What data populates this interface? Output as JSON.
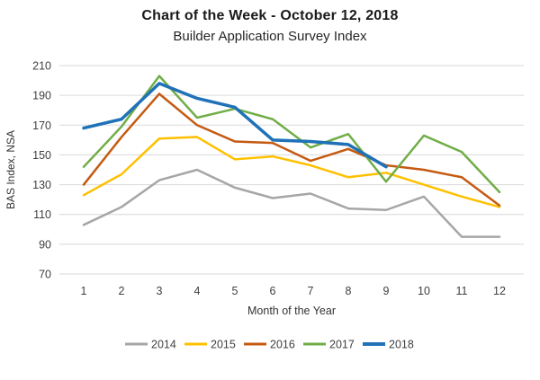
{
  "title": "Chart of the Week - October 12, 2018",
  "subtitle": "Builder Application Survey Index",
  "chart_data": {
    "type": "line",
    "x": [
      1,
      2,
      3,
      4,
      5,
      6,
      7,
      8,
      9,
      10,
      11,
      12
    ],
    "xlabel": "Month of the Year",
    "ylabel": "BAS Index, NSA",
    "ylim": [
      70,
      210
    ],
    "ytick_step": 20,
    "grid": "horizontal",
    "gridline_color": "#d9d9d9",
    "tick_label_color": "#404040",
    "legend_position": "bottom",
    "series": [
      {
        "name": "2014",
        "color": "#a6a6a6",
        "values": [
          103,
          115,
          133,
          140,
          128,
          121,
          124,
          114,
          113,
          122,
          95,
          95
        ]
      },
      {
        "name": "2015",
        "color": "#ffc000",
        "values": [
          123,
          137,
          161,
          162,
          147,
          149,
          143,
          135,
          138,
          130,
          122,
          115
        ]
      },
      {
        "name": "2016",
        "color": "#c55a11",
        "values": [
          130,
          162,
          191,
          170,
          159,
          158,
          146,
          154,
          143,
          140,
          135,
          116
        ]
      },
      {
        "name": "2017",
        "color": "#70ad47",
        "values": [
          142,
          169,
          203,
          175,
          181,
          174,
          155,
          164,
          132,
          163,
          152,
          125
        ]
      },
      {
        "name": "2018",
        "color": "#1f71b8",
        "values": [
          168,
          174,
          198,
          188,
          182,
          160,
          159,
          157,
          142,
          null,
          null,
          null
        ]
      }
    ]
  }
}
